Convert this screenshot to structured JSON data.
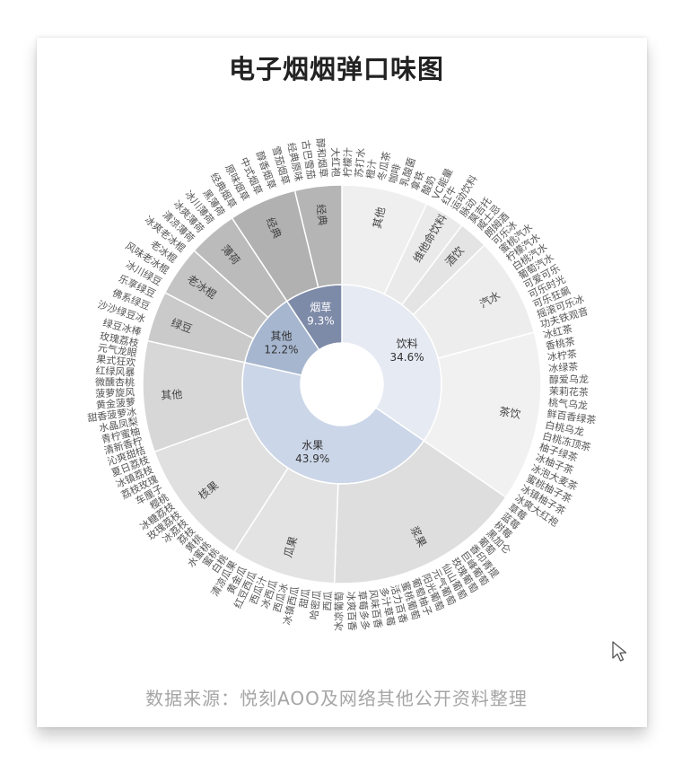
{
  "chart_data": {
    "type": "sunburst",
    "title": "电子烟烟弹口味图",
    "source": "数据来源：悦刻AOO及网络其他公开资料整理",
    "inner": [
      {
        "name": "饮料",
        "pct": "34.6%",
        "value": 34.6,
        "color": "#e6eaf2",
        "children": [
          {
            "name": "其他",
            "value": 7.0,
            "color": "#efefef",
            "flavors": [
              "柠檬汁",
              "苏打水",
              "橙汁",
              "冬瓜茶",
              "咖啡",
              "乳酸菌",
              "拿铁",
              "酸奶"
            ]
          },
          {
            "name": "维他命饮料",
            "value": 3.3,
            "color": "#eaeaea",
            "flavors": [
              "VC能量",
              "红牛",
              "运动饮料",
              "脉动"
            ]
          },
          {
            "name": "酒饮",
            "value": 2.4,
            "color": "#e4e4e4",
            "flavors": [
              "莫吉托",
              "威士忌",
              "朗姆酒"
            ]
          },
          {
            "name": "汽水",
            "value": 8.1,
            "color": "#ededed",
            "flavors": [
              "可乐冰",
              "蜜桃汽水",
              "柠檬汽水",
              "白桃汽水",
              "葡萄汽水",
              "可爱可乐",
              "可乐时光",
              "可乐狂飙",
              "摇滚可乐冰",
              "功夫铁观音"
            ]
          },
          {
            "name": "茶饮",
            "value": 13.8,
            "color": "#f1f1f1",
            "flavors": [
              "冰红茶",
              "香桃茶",
              "冰柠茶",
              "冰绿茶",
              "醇爱乌龙",
              "茉莉花茶",
              "桃气乌龙",
              "鲜百香绿茶",
              "白桃乌龙",
              "白桃冻顶茶",
              "柚子绿茶",
              "冰柚子茶",
              "冰泡大麦茶",
              "蜜桃柚子茶",
              "冰镇柚子茶",
              "冰爽大红袍"
            ]
          }
        ]
      },
      {
        "name": "水果",
        "pct": "43.9%",
        "value": 43.9,
        "color": "#cbd6e8",
        "children": [
          {
            "name": "浆果",
            "value": 16.0,
            "color": "#dedede",
            "flavors": [
              "草莓",
              "蓝莓",
              "树莓",
              "黑加仑",
              "葡萄",
              "香印青提",
              "巨峰葡萄",
              "玫瑰葡萄",
              "仙山葡萄",
              "元气葡萄",
              "阳光葡萄",
              "葡萄柚子",
              "蜜桃葡萄",
              "活力百香",
              "多汁草莓",
              "风味百香",
              "草莓多多",
              "冰爽百香",
              "冰凉葡萄"
            ]
          },
          {
            "name": "瓜果",
            "value": 8.5,
            "color": "#e3e3e3",
            "flavors": [
              "西瓜",
              "哈密瓜",
              "甜瓜",
              "冰镇西瓜",
              "西瓜冰",
              "冰西瓜",
              "西瓜汁",
              "红豆西瓜",
              "黄金瓜",
              "清凉瓜果"
            ]
          },
          {
            "name": "核果",
            "value": 10.4,
            "color": "#e0e0e0",
            "flavors": [
              "白桃",
              "蜜桃",
              "水蜜桃",
              "黄桃",
              "荔枝",
              "冰荔枝",
              "玫瑰荔枝",
              "冰糖荔枝",
              "樱桃",
              "车厘子",
              "荔枝玫瑰",
              "冰镇荔枝",
              "夏日荔枝"
            ]
          },
          {
            "name": "其他",
            "value": 9.0,
            "color": "#d7d7d7",
            "flavors": [
              "沁爽甜桔",
              "清新香柠",
              "青柠蜜柚",
              "水晶凤梨",
              "甜香菠萝冰",
              "黄金菠萝",
              "菠萝旋风",
              "微醺杏桃",
              "红绿风暴",
              "果式狂欢",
              "元气龙眼",
              "玫瑰荔枝"
            ]
          }
        ]
      },
      {
        "name": "其他",
        "pct": "12.2%",
        "value": 12.2,
        "color": "#a6b6cf",
        "children": [
          {
            "name": "绿豆",
            "value": 4.1,
            "color": "#cacaca",
            "flavors": [
              "绿豆冰棒",
              "沙沙绿豆冰",
              "佛系绿豆",
              "乐享绿豆"
            ]
          },
          {
            "name": "老冰棍",
            "value": 4.1,
            "color": "#c4c4c4",
            "flavors": [
              "冰川绿豆",
              "风味老冰棍",
              "老冰棍",
              "冰爽老冰棍"
            ]
          },
          {
            "name": "薄荷",
            "value": 4.0,
            "color": "#bbbbbb",
            "flavors": [
              "清凉薄荷",
              "冰爽薄荷",
              "冰川薄荷",
              "黑薄荷"
            ]
          }
        ]
      },
      {
        "name": "烟草",
        "pct": "9.3%",
        "value": 9.3,
        "color": "#7d8aa8",
        "children": [
          {
            "name": "经典",
            "value": 5.5,
            "color": "#b1b1b1",
            "flavors": [
              "经典烟草",
              "原味烟草",
              "中式烟草",
              "醇香烟草",
              "雪茄烟草"
            ]
          },
          {
            "name": "经典",
            "value": 3.8,
            "color": "#b5b5b5",
            "flavors": [
              "经典原味",
              "古巴雪茄",
              "醇和烟草",
              "大红袍"
            ]
          }
        ]
      }
    ]
  },
  "decor": {
    "cursor_icon": "mouse-pointer-icon"
  }
}
